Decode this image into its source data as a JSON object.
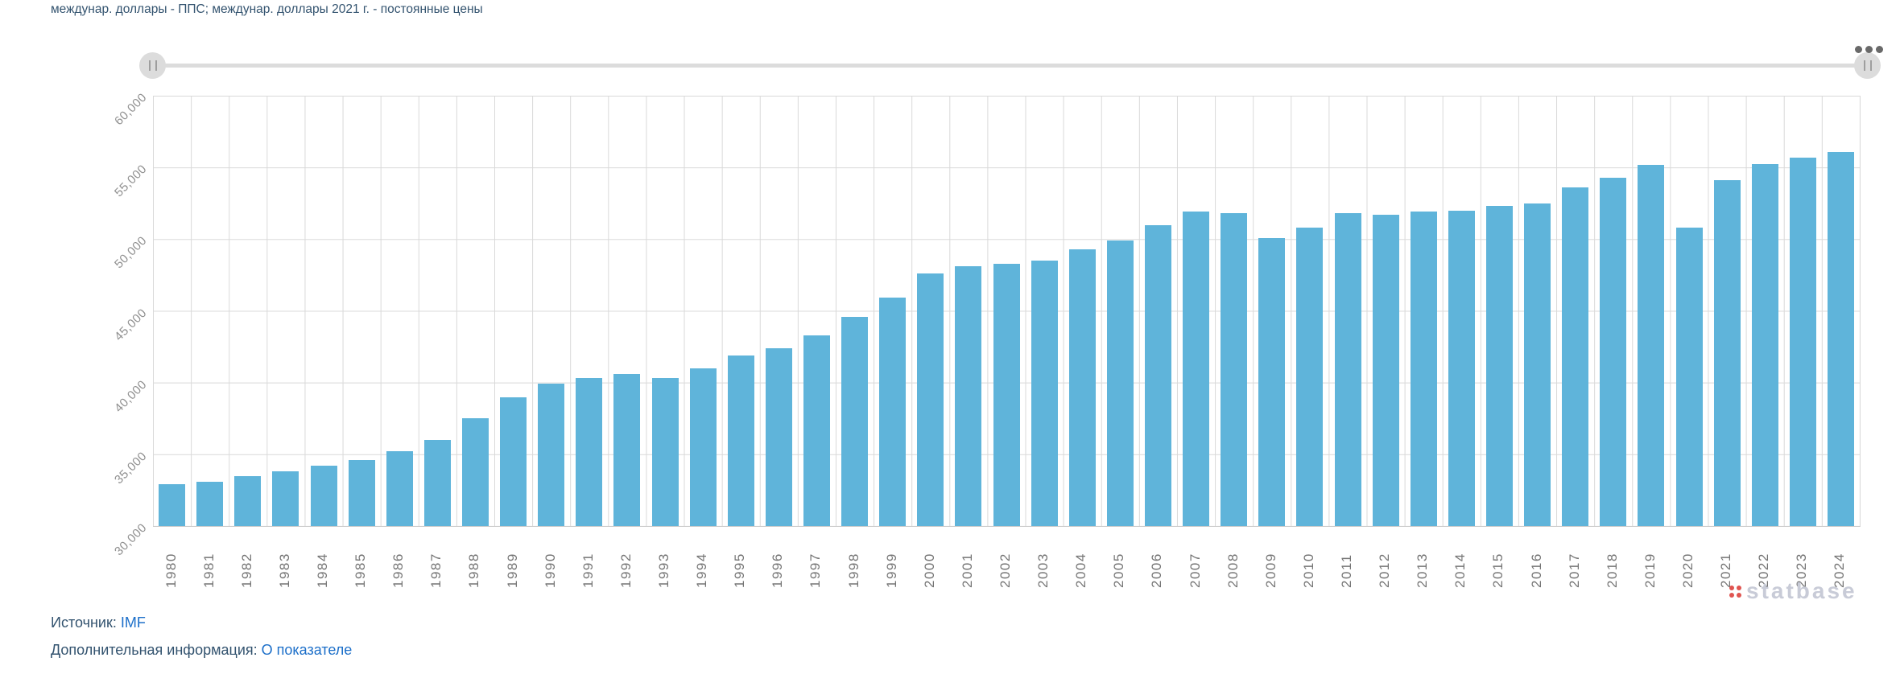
{
  "title": "междунар. доллары - ППС; междунар. доллары 2021 г. - постоянные цены",
  "toolbar": {
    "menu_icon": "ellipsis-menu-icon"
  },
  "slider": {
    "left_handle": "range-start",
    "right_handle": "range-end"
  },
  "chart_data": {
    "type": "bar",
    "title": "междунар. доллары - ППС; междунар. доллары 2021 г. - постоянные цены",
    "categories": [
      "1980",
      "1981",
      "1982",
      "1983",
      "1984",
      "1985",
      "1986",
      "1987",
      "1988",
      "1989",
      "1990",
      "1991",
      "1992",
      "1993",
      "1994",
      "1995",
      "1996",
      "1997",
      "1998",
      "1999",
      "2000",
      "2001",
      "2002",
      "2003",
      "2004",
      "2005",
      "2006",
      "2007",
      "2008",
      "2009",
      "2010",
      "2011",
      "2012",
      "2013",
      "2014",
      "2015",
      "2016",
      "2017",
      "2018",
      "2019",
      "2020",
      "2021",
      "2022",
      "2023",
      "2024"
    ],
    "values": [
      32900,
      33100,
      33500,
      33800,
      34200,
      34600,
      35200,
      36000,
      37500,
      39000,
      39900,
      40300,
      40600,
      40300,
      41000,
      41900,
      42400,
      43300,
      44600,
      45900,
      47600,
      48100,
      48300,
      48500,
      49300,
      49900,
      51000,
      51900,
      51800,
      50100,
      50800,
      51800,
      51700,
      51900,
      52000,
      52300,
      52500,
      53600,
      54300,
      55200,
      50800,
      54100,
      55250,
      55700,
      56100
    ],
    "xlabel": "",
    "ylabel": "",
    "ylim": [
      30000,
      60000
    ],
    "ytick_step": 5000,
    "ytick_labels_top_to_bottom": [
      "60,000",
      "55,000",
      "50,000",
      "45,000",
      "40,000",
      "35,000",
      "30,000"
    ],
    "grid": true,
    "legend": "none",
    "bar_color": "#5fb4da"
  },
  "watermark": {
    "logo_icon": "statbase-dots-logo",
    "text": "statbase"
  },
  "footer": {
    "source_label": "Источник:",
    "source_link": "IMF",
    "info_label": "Дополнительная информация:",
    "info_link": "О показателе"
  },
  "colors": {
    "bar": "#5fb4da",
    "gridline": "#d9d9d9",
    "axis_text": "#8f8f8f",
    "title_text": "#33536f",
    "link": "#1c6fc9",
    "slider": "#dcdcdc",
    "watermark_text": "#c8cbd7",
    "watermark_dots": "#e05450"
  }
}
